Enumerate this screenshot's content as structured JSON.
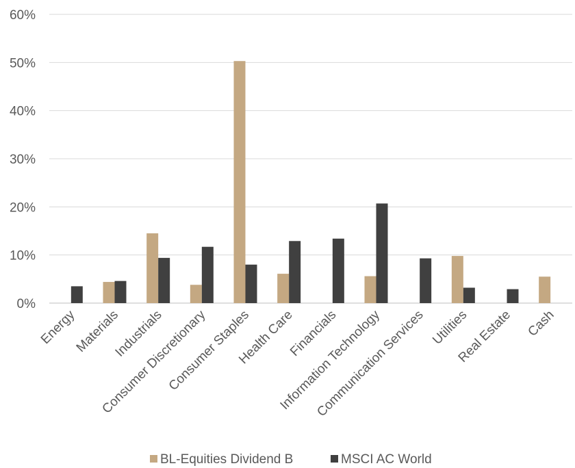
{
  "chart_data": {
    "type": "bar",
    "categories": [
      "Energy",
      "Materials",
      "Industrials",
      "Consumer Discretionary",
      "Consumer Staples",
      "Health Care",
      "Financials",
      "Information Technology",
      "Communication Services",
      "Utilities",
      "Real Estate",
      "Cash"
    ],
    "series": [
      {
        "name": "BL-Equities Dividend B",
        "color": "#C4A882",
        "values": [
          0,
          4.4,
          14.5,
          3.8,
          50.3,
          6.1,
          0,
          5.6,
          0,
          9.8,
          0,
          5.5
        ]
      },
      {
        "name": "MSCI AC World",
        "color": "#404040",
        "values": [
          3.5,
          4.6,
          9.4,
          11.7,
          8.0,
          12.9,
          13.4,
          20.7,
          9.3,
          3.2,
          2.9,
          0
        ]
      }
    ],
    "ylim": [
      0,
      60
    ],
    "yticks": [
      0,
      10,
      20,
      30,
      40,
      50,
      60
    ],
    "ytick_labels": [
      "0%",
      "10%",
      "20%",
      "30%",
      "40%",
      "50%",
      "60%"
    ],
    "grid": true,
    "legend_position": "bottom"
  }
}
